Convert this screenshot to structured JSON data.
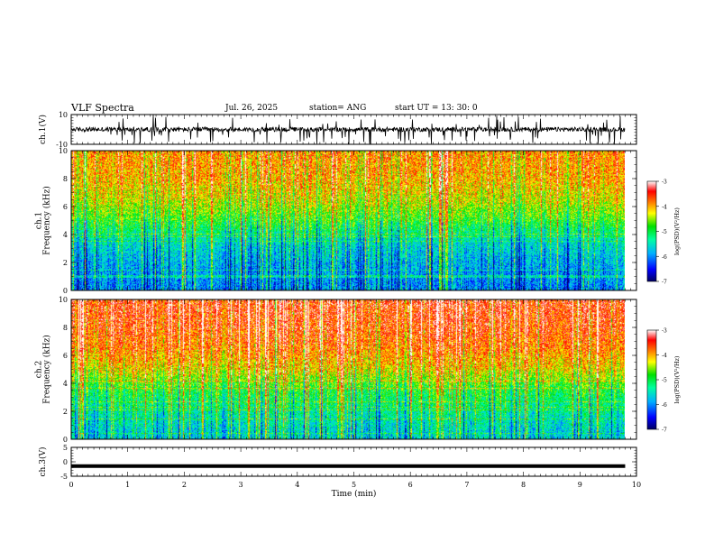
{
  "header": {
    "title": "VLF Spectra",
    "date": "Jul. 26, 2025",
    "station": "station= ANG",
    "start": "start UT = 13: 30: 0"
  },
  "colors": {
    "waveform": "#000000",
    "colormap": [
      "#000080",
      "#0000ff",
      "#00a0ff",
      "#00ffb0",
      "#00e000",
      "#ffff00",
      "#ff8000",
      "#ff0000",
      "#ff8080",
      "#ffffff"
    ]
  },
  "chart_data": [
    {
      "type": "line",
      "panel": "ch1-waveform",
      "ylabel": "ch.1(V)",
      "ylim": [
        -10,
        10
      ],
      "yticks": [
        "10",
        "-10"
      ],
      "xlim": [
        0,
        10
      ],
      "series": [
        {
          "baseline": 0,
          "typical_amplitude": 3,
          "max_amplitude": 10,
          "x_end": 9.8
        }
      ]
    },
    {
      "type": "heatmap",
      "panel": "ch1-spectrogram",
      "ylabel": "ch.1\nFrequency (kHz)",
      "ylim": [
        0,
        10
      ],
      "yticks": [
        "0",
        "2",
        "4",
        "6",
        "8",
        "10"
      ],
      "xlim": [
        0,
        10
      ],
      "colorbar": {
        "label": "log(PSD)(V²/Hz)",
        "range": [
          -7,
          -3
        ],
        "ticks": [
          "-3",
          "-4",
          "-5",
          "-6",
          "-7"
        ]
      },
      "data_summary": [
        {
          "freq_khz": 0.5,
          "log_psd": -6.0
        },
        {
          "freq_khz": 2,
          "log_psd": -5.8
        },
        {
          "freq_khz": 3.5,
          "log_psd": -5.5
        },
        {
          "freq_khz": 5,
          "log_psd": -4.8
        },
        {
          "freq_khz": 6.5,
          "log_psd": -4.3
        },
        {
          "freq_khz": 8,
          "log_psd": -4.0
        },
        {
          "freq_khz": 9.5,
          "log_psd": -3.9
        }
      ],
      "x_end": 9.8
    },
    {
      "type": "heatmap",
      "panel": "ch2-spectrogram",
      "ylabel": "ch.2\nFrequency (kHz)",
      "ylim": [
        0,
        10
      ],
      "yticks": [
        "0",
        "2",
        "4",
        "6",
        "8",
        "10"
      ],
      "xlim": [
        0,
        10
      ],
      "colorbar": {
        "label": "log(PSD)(V²/Hz)",
        "range": [
          -7,
          -3
        ],
        "ticks": [
          "-3",
          "-4",
          "-5",
          "-6",
          "-7"
        ]
      },
      "data_summary": [
        {
          "freq_khz": 0.5,
          "log_psd": -5.6
        },
        {
          "freq_khz": 2,
          "log_psd": -5.3
        },
        {
          "freq_khz": 3.5,
          "log_psd": -4.9
        },
        {
          "freq_khz": 5,
          "log_psd": -4.2
        },
        {
          "freq_khz": 6.5,
          "log_psd": -3.8
        },
        {
          "freq_khz": 8,
          "log_psd": -3.6
        },
        {
          "freq_khz": 9.5,
          "log_psd": -3.5
        }
      ],
      "x_end": 9.8
    },
    {
      "type": "line",
      "panel": "ch3-waveform",
      "ylabel": "ch.3(V)",
      "ylim": [
        -5,
        5
      ],
      "yticks": [
        "5",
        "0",
        "-5"
      ],
      "xlim": [
        0,
        10
      ],
      "xlabel": "Time (min)",
      "xticks": [
        "0",
        "1",
        "2",
        "3",
        "4",
        "5",
        "6",
        "7",
        "8",
        "9",
        "10"
      ],
      "series": [
        {
          "baseline": -1.5,
          "x_end": 9.8
        }
      ]
    }
  ]
}
